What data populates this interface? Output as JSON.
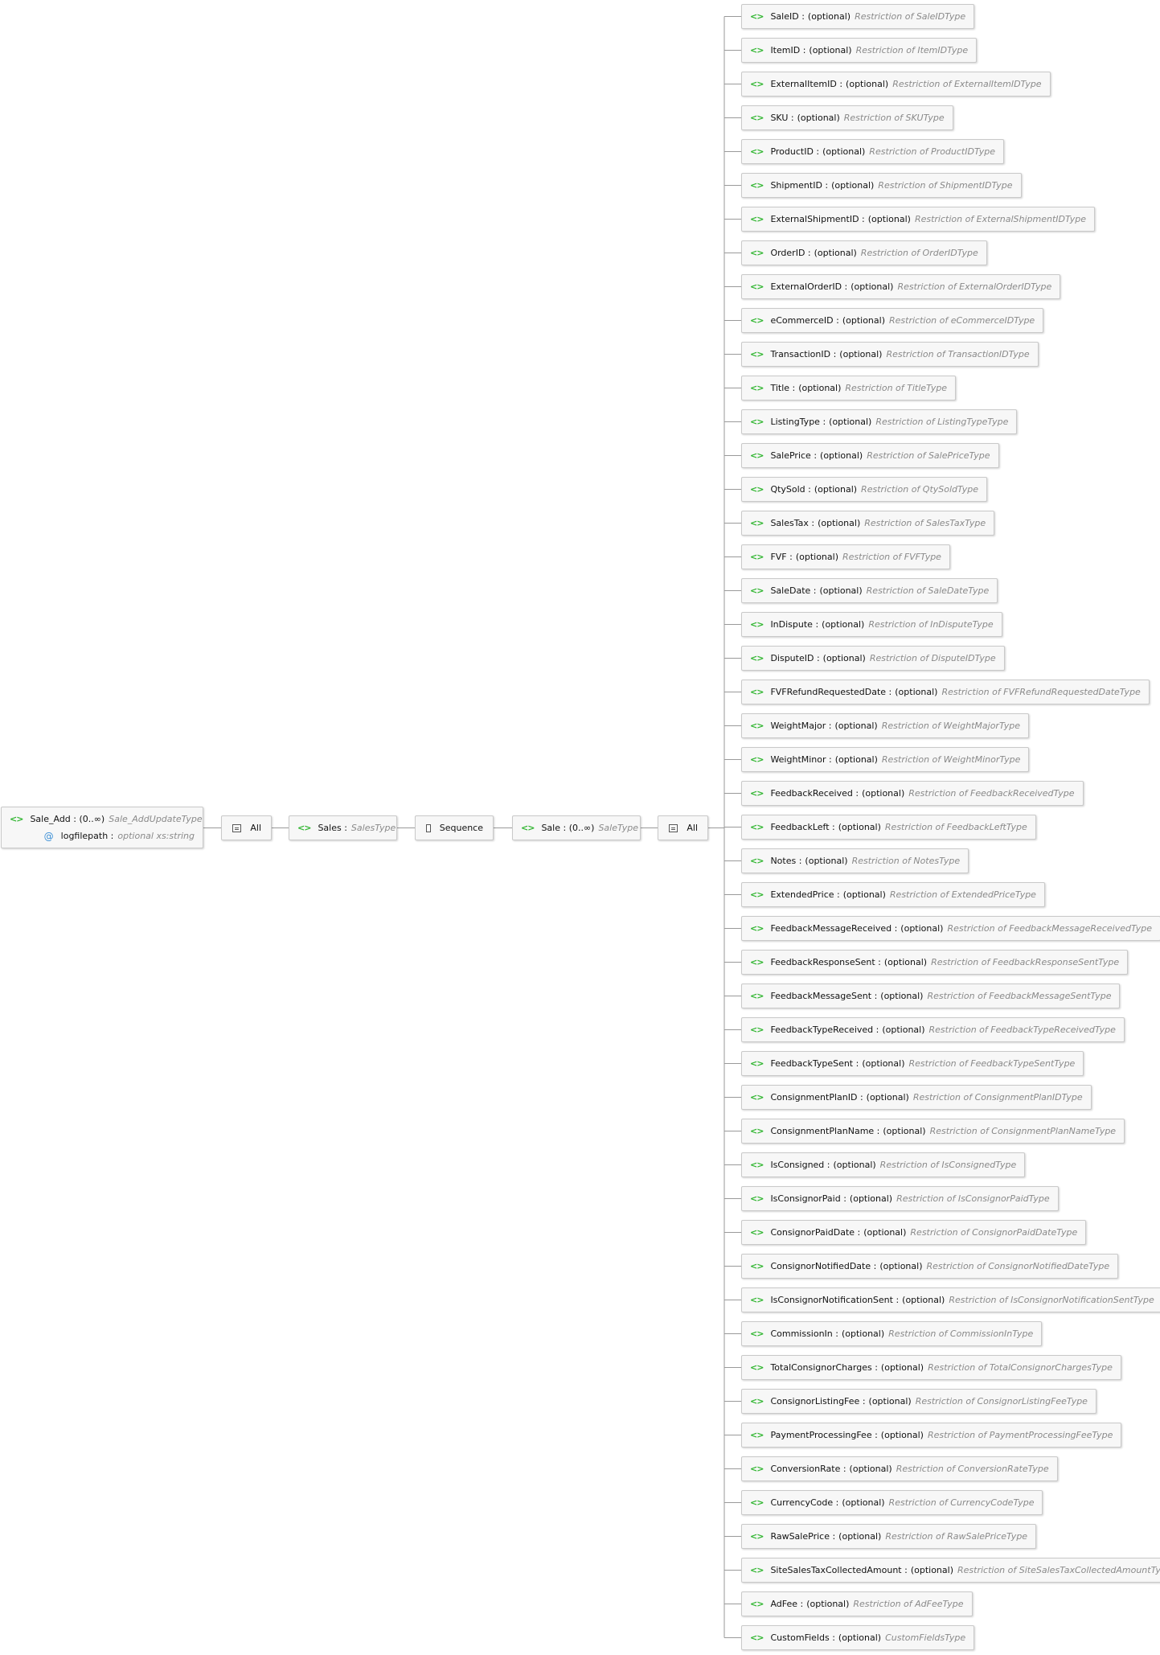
{
  "root": {
    "name": "Sale_Add",
    "occurs": "(0..∞)",
    "type": "Sale_AddUpdateType",
    "attribute": {
      "name": "logfilepath",
      "type": "optional xs:string"
    }
  },
  "chain": {
    "all1": "All",
    "sales": {
      "name": "Sales",
      "type": "SalesType"
    },
    "sequence": "Sequence",
    "sale": {
      "name": "Sale",
      "occurs": "(0..∞)",
      "type": "SaleType"
    },
    "all2": "All"
  },
  "optional_label": "(optional)",
  "icon": "element-icon",
  "children": [
    {
      "name": "SaleID",
      "type": "Restriction of SaleIDType"
    },
    {
      "name": "ItemID",
      "type": "Restriction of ItemIDType"
    },
    {
      "name": "ExternalItemID",
      "type": "Restriction of ExternalItemIDType"
    },
    {
      "name": "SKU",
      "type": "Restriction of SKUType"
    },
    {
      "name": "ProductID",
      "type": "Restriction of ProductIDType"
    },
    {
      "name": "ShipmentID",
      "type": "Restriction of ShipmentIDType"
    },
    {
      "name": "ExternalShipmentID",
      "type": "Restriction of ExternalShipmentIDType"
    },
    {
      "name": "OrderID",
      "type": "Restriction of OrderIDType"
    },
    {
      "name": "ExternalOrderID",
      "type": "Restriction of ExternalOrderIDType"
    },
    {
      "name": "eCommerceID",
      "type": "Restriction of eCommerceIDType"
    },
    {
      "name": "TransactionID",
      "type": "Restriction of TransactionIDType"
    },
    {
      "name": "Title",
      "type": "Restriction of TitleType"
    },
    {
      "name": "ListingType",
      "type": "Restriction of ListingTypeType"
    },
    {
      "name": "SalePrice",
      "type": "Restriction of SalePriceType"
    },
    {
      "name": "QtySold",
      "type": "Restriction of QtySoldType"
    },
    {
      "name": "SalesTax",
      "type": "Restriction of SalesTaxType"
    },
    {
      "name": "FVF",
      "type": "Restriction of FVFType"
    },
    {
      "name": "SaleDate",
      "type": "Restriction of SaleDateType"
    },
    {
      "name": "InDispute",
      "type": "Restriction of InDisputeType"
    },
    {
      "name": "DisputeID",
      "type": "Restriction of DisputeIDType"
    },
    {
      "name": "FVFRefundRequestedDate",
      "type": "Restriction of FVFRefundRequestedDateType"
    },
    {
      "name": "WeightMajor",
      "type": "Restriction of WeightMajorType"
    },
    {
      "name": "WeightMinor",
      "type": "Restriction of WeightMinorType"
    },
    {
      "name": "FeedbackReceived",
      "type": "Restriction of FeedbackReceivedType"
    },
    {
      "name": "FeedbackLeft",
      "type": "Restriction of FeedbackLeftType"
    },
    {
      "name": "Notes",
      "type": "Restriction of NotesType"
    },
    {
      "name": "ExtendedPrice",
      "type": "Restriction of ExtendedPriceType"
    },
    {
      "name": "FeedbackMessageReceived",
      "type": "Restriction of FeedbackMessageReceivedType"
    },
    {
      "name": "FeedbackResponseSent",
      "type": "Restriction of FeedbackResponseSentType"
    },
    {
      "name": "FeedbackMessageSent",
      "type": "Restriction of FeedbackMessageSentType"
    },
    {
      "name": "FeedbackTypeReceived",
      "type": "Restriction of FeedbackTypeReceivedType"
    },
    {
      "name": "FeedbackTypeSent",
      "type": "Restriction of FeedbackTypeSentType"
    },
    {
      "name": "ConsignmentPlanID",
      "type": "Restriction of ConsignmentPlanIDType"
    },
    {
      "name": "ConsignmentPlanName",
      "type": "Restriction of ConsignmentPlanNameType"
    },
    {
      "name": "IsConsigned",
      "type": "Restriction of IsConsignedType"
    },
    {
      "name": "IsConsignorPaid",
      "type": "Restriction of IsConsignorPaidType"
    },
    {
      "name": "ConsignorPaidDate",
      "type": "Restriction of ConsignorPaidDateType"
    },
    {
      "name": "ConsignorNotifiedDate",
      "type": "Restriction of ConsignorNotifiedDateType"
    },
    {
      "name": "IsConsignorNotificationSent",
      "type": "Restriction of IsConsignorNotificationSentType"
    },
    {
      "name": "CommissionIn",
      "type": "Restriction of CommissionInType"
    },
    {
      "name": "TotalConsignorCharges",
      "type": "Restriction of TotalConsignorChargesType"
    },
    {
      "name": "ConsignorListingFee",
      "type": "Restriction of ConsignorListingFeeType"
    },
    {
      "name": "PaymentProcessingFee",
      "type": "Restriction of PaymentProcessingFeeType"
    },
    {
      "name": "ConversionRate",
      "type": "Restriction of ConversionRateType"
    },
    {
      "name": "CurrencyCode",
      "type": "Restriction of CurrencyCodeType"
    },
    {
      "name": "RawSalePrice",
      "type": "Restriction of RawSalePriceType"
    },
    {
      "name": "SiteSalesTaxCollectedAmount",
      "type": "Restriction of SiteSalesTaxCollectedAmountType"
    },
    {
      "name": "AdFee",
      "type": "Restriction of AdFeeType"
    },
    {
      "name": "CustomFields",
      "type": "CustomFieldsType"
    }
  ]
}
